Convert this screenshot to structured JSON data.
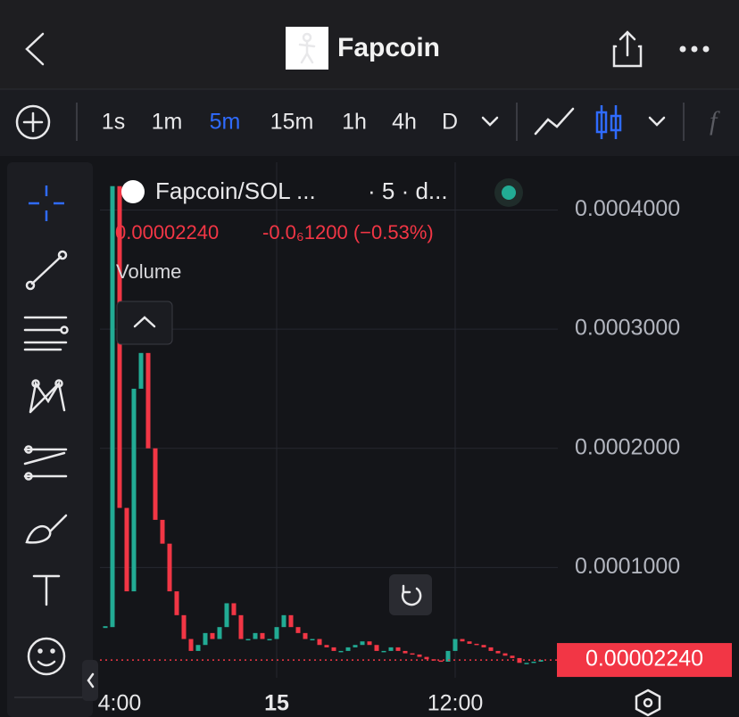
{
  "header": {
    "title": "Fapcoin"
  },
  "toolbar": {
    "intervals": [
      "1s",
      "1m",
      "5m",
      "15m",
      "1h",
      "4h",
      "D"
    ],
    "active_interval": 2
  },
  "chart": {
    "type": "candlestick",
    "symbol": "Fapcoin/SOL ...",
    "meta": "· 5 · d...",
    "change": "-0.0₆1200 (−0.53%)",
    "volume_label": "Volume",
    "up_color": "#22ab94",
    "down_color": "#f23645",
    "categories": [
      null,
      null,
      "4:00",
      null,
      null,
      null,
      null,
      null,
      null,
      null,
      null,
      null,
      null,
      null,
      null,
      null,
      null,
      null,
      null,
      null,
      null,
      null,
      null,
      null,
      "15",
      null,
      null,
      null,
      null,
      null,
      null,
      null,
      null,
      null,
      null,
      null,
      null,
      null,
      null,
      null,
      null,
      null,
      null,
      null,
      null,
      null,
      null,
      null,
      null,
      "12:00",
      null,
      null,
      null,
      null,
      null,
      null,
      null,
      null,
      null,
      null,
      null,
      null
    ],
    "values": [
      5e-05,
      0.00042,
      0.00015,
      8e-05,
      0.00025,
      0.00028,
      0.0002,
      0.00014,
      0.00012,
      8e-05,
      6e-05,
      4e-05,
      3e-05,
      3.5e-05,
      4.5e-05,
      4e-05,
      5e-05,
      7e-05,
      6e-05,
      4e-05,
      4e-05,
      4.5e-05,
      4e-05,
      4e-05,
      5e-05,
      6e-05,
      5e-05,
      4.5e-05,
      4e-05,
      4e-05,
      3.5e-05,
      3.3e-05,
      3e-05,
      3e-05,
      3.3e-05,
      3.5e-05,
      3.8e-05,
      3.5e-05,
      3e-05,
      3e-05,
      3.3e-05,
      3e-05,
      2.8e-05,
      2.7e-05,
      2.5e-05,
      2.3e-05,
      2.2e-05,
      2.1e-05,
      3e-05,
      4e-05,
      3.8e-05,
      3.6e-05,
      3.5e-05,
      3.3e-05,
      3e-05,
      2.8e-05,
      2.6e-05,
      2.4e-05,
      2e-05,
      2e-05,
      2.1e-05,
      2.24e-05
    ],
    "ylim": [
      0,
      0.00044
    ],
    "yticks": [
      {
        "value": 0.0001,
        "label": "0.0001000"
      },
      {
        "value": 0.0002,
        "label": "0.0002000"
      },
      {
        "value": 0.0003,
        "label": "0.0003000"
      },
      {
        "value": 0.0004,
        "label": "0.0004000"
      }
    ],
    "last_price": {
      "value": 2.24e-05,
      "label": "0.00002240"
    },
    "grid": true
  }
}
